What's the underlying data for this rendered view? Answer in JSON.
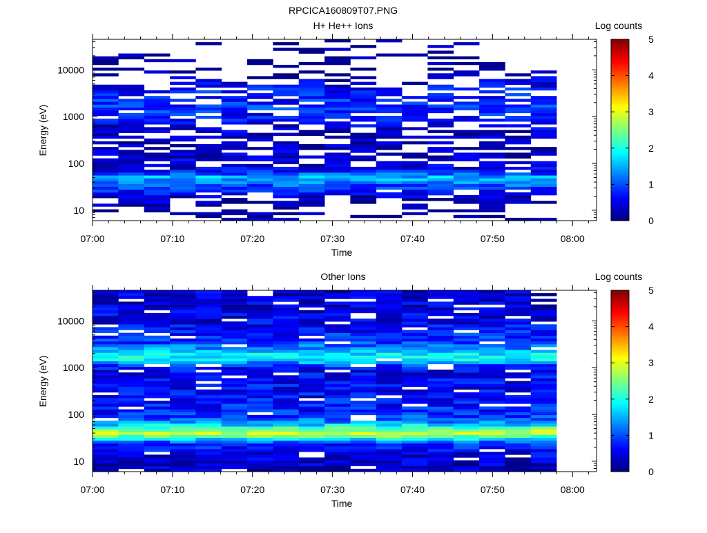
{
  "figure_title": "RPCICA160809T07.PNG",
  "colors": {
    "background": "#ffffff",
    "colormap": [
      "#00007f",
      "#0000ff",
      "#007fff",
      "#00ffff",
      "#7fff7f",
      "#ffff00",
      "#ff7f00",
      "#ff0000",
      "#7f0000"
    ]
  },
  "chart_data": [
    {
      "type": "heatmap",
      "title": "H+ He++ Ions",
      "xlabel": "Time",
      "ylabel": "Energy (eV)",
      "x_ticks": [
        "07:00",
        "07:10",
        "07:20",
        "07:30",
        "07:40",
        "07:50",
        "08:00"
      ],
      "y_ticks": [
        "10",
        "100",
        "1000",
        "10000"
      ],
      "y_scale": "log",
      "ylim": [
        6,
        45000
      ],
      "xlim": [
        "07:00",
        "08:03"
      ],
      "data_xlim": [
        "07:00",
        "07:58"
      ],
      "colorbar": {
        "label": "Log counts",
        "ticks": [
          "0",
          "1",
          "2",
          "3",
          "4",
          "5"
        ],
        "range": [
          0,
          5
        ]
      },
      "pattern": "sparse",
      "levels": [
        {
          "energy_eV": 10,
          "log_counts": 0.1,
          "fill": 0.4
        },
        {
          "energy_eV": 15,
          "log_counts": 0.25,
          "fill": 0.45
        },
        {
          "energy_eV": 20,
          "log_counts": 0.35,
          "fill": 0.6
        },
        {
          "energy_eV": 30,
          "log_counts": 0.9,
          "fill": 1.0
        },
        {
          "energy_eV": 40,
          "log_counts": 1.2,
          "fill": 1.0
        },
        {
          "energy_eV": 50,
          "log_counts": 1.6,
          "fill": 1.0
        },
        {
          "energy_eV": 60,
          "log_counts": 1.0,
          "fill": 1.0
        },
        {
          "energy_eV": 80,
          "log_counts": 0.45,
          "fill": 0.85
        },
        {
          "energy_eV": 150,
          "log_counts": 0.3,
          "fill": 0.7
        },
        {
          "energy_eV": 400,
          "log_counts": 0.25,
          "fill": 0.55
        },
        {
          "energy_eV": 1500,
          "log_counts": 0.85,
          "fill": 0.8
        },
        {
          "energy_eV": 3500,
          "log_counts": 0.7,
          "fill": 0.7
        },
        {
          "energy_eV": 10000,
          "log_counts": 0.1,
          "fill": 0.25
        },
        {
          "energy_eV": 30000,
          "log_counts": 0.05,
          "fill": 0.2
        }
      ]
    },
    {
      "type": "heatmap",
      "title": "Other Ions",
      "xlabel": "Time",
      "ylabel": "Energy (eV)",
      "x_ticks": [
        "07:00",
        "07:10",
        "07:20",
        "07:30",
        "07:40",
        "07:50",
        "08:00"
      ],
      "y_ticks": [
        "10",
        "100",
        "1000",
        "10000"
      ],
      "y_scale": "log",
      "ylim": [
        6,
        45000
      ],
      "xlim": [
        "07:00",
        "08:03"
      ],
      "data_xlim": [
        "07:00",
        "07:58"
      ],
      "colorbar": {
        "label": "Log counts",
        "ticks": [
          "0",
          "1",
          "2",
          "3",
          "4",
          "5"
        ],
        "range": [
          0,
          5
        ]
      },
      "pattern": "dense",
      "levels": [
        {
          "energy_eV": 8,
          "log_counts": 0.3,
          "fill": 0.95
        },
        {
          "energy_eV": 15,
          "log_counts": 0.5,
          "fill": 0.92
        },
        {
          "energy_eV": 25,
          "log_counts": 0.9,
          "fill": 1.0
        },
        {
          "energy_eV": 33,
          "log_counts": 2.2,
          "fill": 1.0
        },
        {
          "energy_eV": 40,
          "log_counts": 2.9,
          "fill": 1.0
        },
        {
          "energy_eV": 50,
          "log_counts": 2.4,
          "fill": 1.0
        },
        {
          "energy_eV": 65,
          "log_counts": 1.4,
          "fill": 1.0
        },
        {
          "energy_eV": 100,
          "log_counts": 0.8,
          "fill": 0.95
        },
        {
          "energy_eV": 300,
          "log_counts": 0.6,
          "fill": 0.92
        },
        {
          "energy_eV": 1000,
          "log_counts": 0.6,
          "fill": 0.9
        },
        {
          "energy_eV": 1600,
          "log_counts": 2.0,
          "fill": 1.0
        },
        {
          "energy_eV": 3500,
          "log_counts": 0.9,
          "fill": 0.95
        },
        {
          "energy_eV": 10000,
          "log_counts": 0.5,
          "fill": 0.9
        },
        {
          "energy_eV": 30000,
          "log_counts": 0.4,
          "fill": 0.88
        }
      ]
    }
  ]
}
